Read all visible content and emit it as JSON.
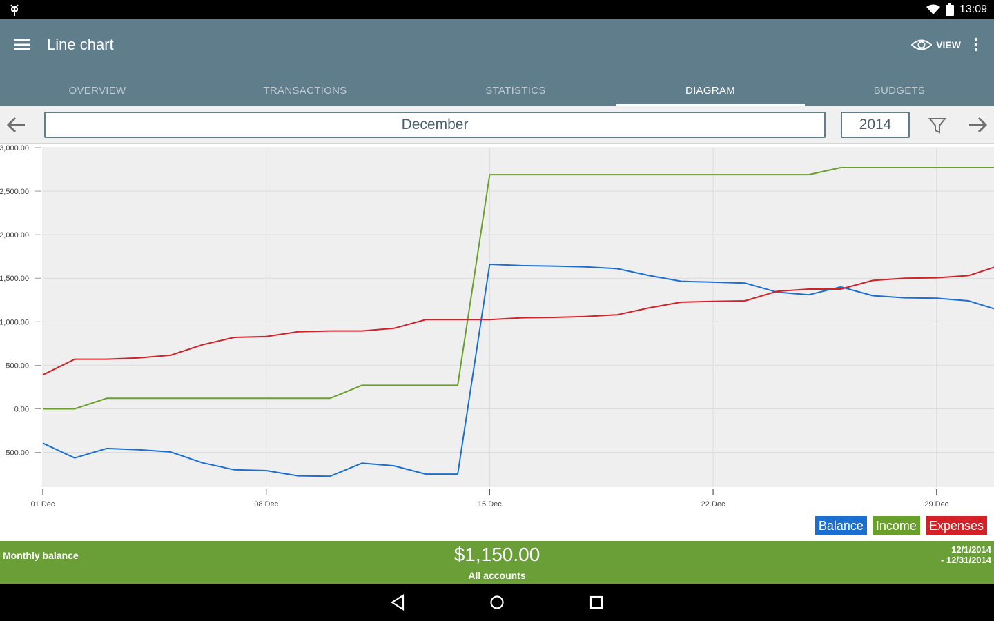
{
  "status_bar": {
    "time": "13:09",
    "left_icon": "android-debug-icon",
    "icons": [
      "wifi-icon",
      "battery-icon"
    ]
  },
  "app_bar": {
    "title": "Line chart",
    "view_label": "VIEW",
    "background": "#607d8b"
  },
  "tabs": [
    {
      "label": "OVERVIEW",
      "active": false
    },
    {
      "label": "TRANSACTIONS",
      "active": false
    },
    {
      "label": "STATISTICS",
      "active": false
    },
    {
      "label": "DIAGRAM",
      "active": true
    },
    {
      "label": "BUDGETS",
      "active": false
    }
  ],
  "period": {
    "month": "December",
    "year": "2014"
  },
  "chart_data": {
    "type": "line",
    "title": "",
    "xlabel": "",
    "ylabel": "",
    "ylim": [
      -900,
      3000
    ],
    "y_ticks": [
      "3,000.00",
      "2,500.00",
      "2,000.00",
      "1,500.00",
      "1,000.00",
      "500.00",
      "0.00",
      "-500.00"
    ],
    "y_tick_values": [
      3000,
      2500,
      2000,
      1500,
      1000,
      500,
      0,
      -500
    ],
    "x_ticks": [
      "01 Dec",
      "08 Dec",
      "15 Dec",
      "22 Dec",
      "29 Dec"
    ],
    "x_tick_days": [
      1,
      8,
      15,
      22,
      29
    ],
    "xlim": [
      1,
      30.8
    ],
    "grid": true,
    "legend_position": "bottom-right",
    "x": [
      1,
      2,
      3,
      4,
      5,
      6,
      7,
      8,
      9,
      10,
      11,
      12,
      13,
      14,
      15,
      16,
      17,
      18,
      19,
      20,
      21,
      22,
      23,
      24,
      25,
      26,
      27,
      28,
      29,
      30,
      30.8
    ],
    "series": [
      {
        "name": "Balance",
        "color": "#1a6fd1",
        "values": [
          -395,
          -565,
          -455,
          -470,
          -495,
          -620,
          -700,
          -710,
          -770,
          -775,
          -625,
          -655,
          -750,
          -750,
          1660,
          1645,
          1640,
          1630,
          1610,
          1530,
          1465,
          1455,
          1445,
          1340,
          1310,
          1400,
          1300,
          1275,
          1270,
          1240,
          1150
        ]
      },
      {
        "name": "Income",
        "color": "#6a9f2b",
        "values": [
          0,
          0,
          120,
          120,
          120,
          120,
          120,
          120,
          120,
          120,
          270,
          270,
          270,
          270,
          2690,
          2690,
          2690,
          2690,
          2690,
          2690,
          2690,
          2690,
          2690,
          2690,
          2690,
          2770,
          2770,
          2770,
          2770,
          2770,
          2770
        ]
      },
      {
        "name": "Expenses",
        "color": "#d42027",
        "values": [
          390,
          570,
          570,
          585,
          615,
          735,
          820,
          830,
          885,
          895,
          895,
          925,
          1025,
          1025,
          1025,
          1045,
          1050,
          1060,
          1080,
          1160,
          1225,
          1235,
          1240,
          1350,
          1375,
          1375,
          1475,
          1500,
          1505,
          1530,
          1625
        ]
      }
    ]
  },
  "summary": {
    "label": "Monthly balance",
    "amount": "$1,150.00",
    "sub": "All accounts",
    "date_from": "12/1/2014",
    "date_to": "- 12/31/2014",
    "background": "#6a9f38"
  }
}
